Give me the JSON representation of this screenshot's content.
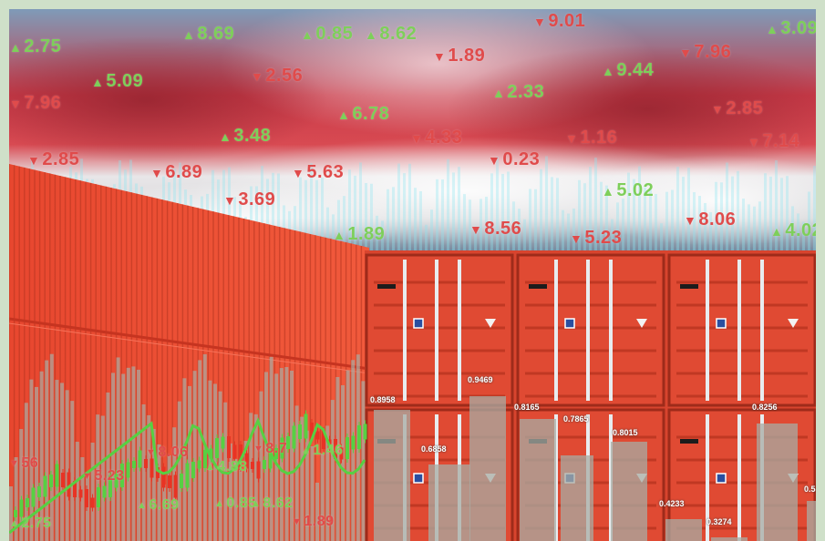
{
  "ticker": [
    {
      "dir": "up",
      "value": "2.75"
    },
    {
      "dir": "up",
      "value": "8.69"
    },
    {
      "dir": "up",
      "value": "0.85"
    },
    {
      "dir": "up",
      "value": "8.62"
    },
    {
      "dir": "down",
      "value": "9.01"
    },
    {
      "dir": "up",
      "value": "3.09"
    },
    {
      "dir": "down",
      "value": "1.89"
    },
    {
      "dir": "down",
      "value": "7.96"
    },
    {
      "dir": "up",
      "value": "5.09"
    },
    {
      "dir": "down",
      "value": "2.56"
    },
    {
      "dir": "up",
      "value": "9.44"
    },
    {
      "dir": "down",
      "value": "7.96"
    },
    {
      "dir": "up",
      "value": "2.33"
    },
    {
      "dir": "up",
      "value": "6.78"
    },
    {
      "dir": "down",
      "value": "2.85"
    },
    {
      "dir": "up",
      "value": "3.48"
    },
    {
      "dir": "down",
      "value": "4.33"
    },
    {
      "dir": "down",
      "value": "1.16"
    },
    {
      "dir": "down",
      "value": "7.14"
    },
    {
      "dir": "down",
      "value": "2.85"
    },
    {
      "dir": "down",
      "value": "6.89"
    },
    {
      "dir": "down",
      "value": "5.63"
    },
    {
      "dir": "down",
      "value": "0.23"
    },
    {
      "dir": "up",
      "value": "5.02"
    },
    {
      "dir": "down",
      "value": "3.69"
    },
    {
      "dir": "up",
      "value": "1.89"
    },
    {
      "dir": "down",
      "value": "8.56"
    },
    {
      "dir": "down",
      "value": "5.23"
    },
    {
      "dir": "down",
      "value": "8.06"
    },
    {
      "dir": "up",
      "value": "4.02"
    }
  ],
  "lower_ticker": [
    {
      "dir": "up",
      "value": "2.75"
    },
    {
      "dir": "down",
      "value": "5.23"
    },
    {
      "dir": "down",
      "value": "8.06"
    },
    {
      "dir": "down",
      "value": "8.7"
    },
    {
      "dir": "up",
      "value": "4.88"
    },
    {
      "dir": "up",
      "value": "1.46"
    },
    {
      "dir": "up",
      "value": "6.69"
    },
    {
      "dir": "up",
      "value": "0.85"
    },
    {
      "dir": "up",
      "value": "8.62"
    },
    {
      "dir": "down",
      "value": "1.89"
    },
    {
      "dir": "down",
      "value": "56"
    }
  ],
  "bar_values": [
    "0.8958",
    "0.9469",
    "0.6858",
    "0.8165",
    "0.7865",
    "0.8015",
    "0.8256",
    "0.4233",
    "0.3274",
    "0.5"
  ],
  "colors": {
    "container_red": "#e04a33",
    "container_dark": "#b8331f",
    "flag_red": "#d8303c",
    "flag_white": "#eef0f2",
    "sky": "#6f8fae",
    "up_green": "#7ecf5a",
    "down_red": "#e04b4b",
    "bar_gray": "#a8aca4",
    "cyan_bars": "#6ee0ee"
  }
}
